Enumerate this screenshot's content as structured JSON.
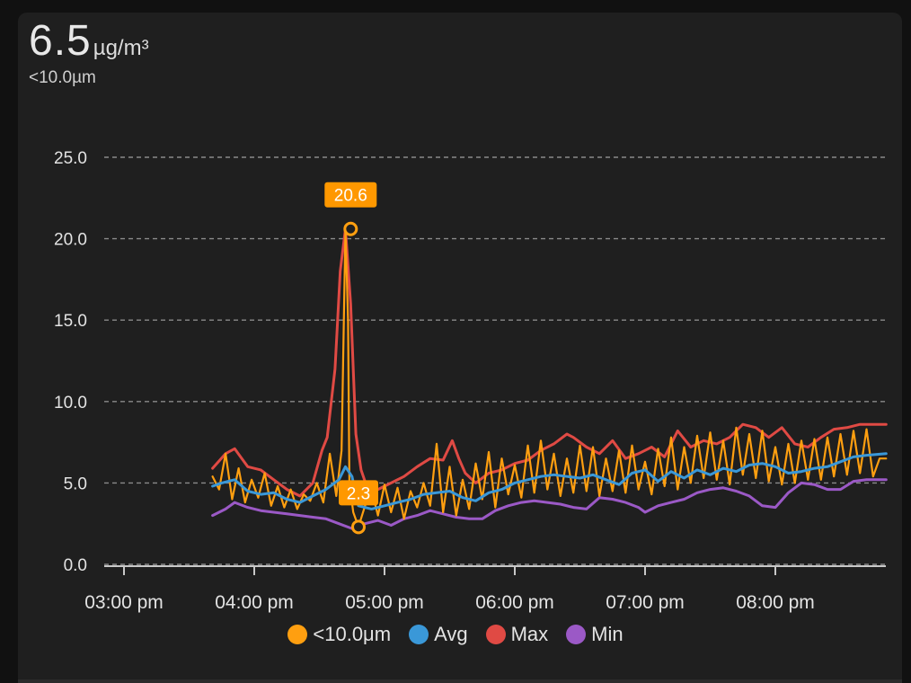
{
  "header": {
    "value": "6.5",
    "unit": "µg/m³",
    "subtitle": "<10.0µm"
  },
  "colors": {
    "background": "#1f1f1f",
    "grid": "#8a8a8a",
    "text": "#e3e3e3",
    "pm10": "#ff9f10",
    "avg": "#3a98d8",
    "max": "#e04a44",
    "min": "#9b59c6",
    "tooltip_bg": "#ff9800"
  },
  "chart_data": {
    "type": "line",
    "title": "",
    "xlabel": "",
    "ylabel": "",
    "ylim": [
      0,
      25
    ],
    "xlim": [
      15.0,
      20.85
    ],
    "y_ticks": [
      "0.0",
      "5.0",
      "10.0",
      "15.0",
      "20.0",
      "25.0"
    ],
    "x_ticks": [
      {
        "label": "03:00 pm",
        "value": 15
      },
      {
        "label": "04:00 pm",
        "value": 16
      },
      {
        "label": "05:00 pm",
        "value": 17
      },
      {
        "label": "06:00 pm",
        "value": 18
      },
      {
        "label": "07:00 pm",
        "value": 19
      },
      {
        "label": "08:00 pm",
        "value": 20
      }
    ],
    "grid": true,
    "legend_position": "bottom",
    "series": [
      {
        "name": "<10.0μm",
        "color_key": "pm10",
        "x": [
          15.68,
          15.73,
          15.78,
          15.83,
          15.88,
          15.93,
          15.98,
          16.03,
          16.08,
          16.13,
          16.18,
          16.23,
          16.28,
          16.33,
          16.38,
          16.43,
          16.48,
          16.53,
          16.58,
          16.63,
          16.67,
          16.7,
          16.72,
          16.73,
          16.76,
          16.8,
          16.85,
          16.9,
          16.95,
          17.0,
          17.05,
          17.1,
          17.15,
          17.2,
          17.25,
          17.3,
          17.35,
          17.4,
          17.45,
          17.5,
          17.55,
          17.6,
          17.65,
          17.7,
          17.75,
          17.8,
          17.85,
          17.9,
          17.95,
          18.0,
          18.05,
          18.1,
          18.15,
          18.2,
          18.25,
          18.3,
          18.35,
          18.4,
          18.45,
          18.5,
          18.55,
          18.6,
          18.65,
          18.7,
          18.75,
          18.8,
          18.85,
          18.9,
          18.95,
          19.0,
          19.05,
          19.1,
          19.15,
          19.2,
          19.25,
          19.3,
          19.35,
          19.4,
          19.45,
          19.5,
          19.55,
          19.6,
          19.65,
          19.7,
          19.75,
          19.8,
          19.85,
          19.9,
          19.95,
          20.0,
          20.05,
          20.1,
          20.15,
          20.2,
          20.25,
          20.3,
          20.35,
          20.4,
          20.45,
          20.5,
          20.55,
          20.6,
          20.65,
          20.7,
          20.75,
          20.8,
          20.85
        ],
        "values": [
          5.4,
          4.6,
          6.8,
          4.0,
          5.9,
          3.8,
          5.2,
          4.1,
          5.6,
          3.6,
          4.8,
          3.5,
          4.6,
          3.4,
          4.3,
          3.9,
          5.0,
          3.8,
          6.8,
          4.2,
          7.0,
          20.6,
          15.0,
          5.0,
          3.2,
          2.3,
          3.6,
          4.6,
          3.0,
          4.9,
          3.2,
          4.7,
          2.8,
          4.5,
          3.5,
          5.0,
          3.6,
          7.4,
          3.2,
          6.0,
          3.0,
          5.2,
          3.4,
          6.2,
          4.0,
          6.9,
          3.5,
          6.5,
          4.3,
          6.1,
          4.1,
          7.3,
          4.4,
          7.6,
          4.6,
          6.8,
          4.2,
          6.5,
          4.4,
          7.3,
          4.5,
          7.2,
          4.2,
          6.5,
          4.5,
          7.0,
          4.4,
          7.3,
          4.6,
          6.3,
          4.3,
          7.1,
          4.8,
          7.8,
          4.6,
          7.2,
          5.0,
          7.9,
          5.3,
          8.1,
          5.2,
          7.6,
          4.9,
          8.4,
          5.5,
          8.0,
          5.3,
          8.2,
          5.1,
          7.2,
          4.9,
          7.4,
          5.0,
          7.6,
          5.2,
          7.7,
          5.2,
          7.8,
          5.4,
          8.0,
          5.5,
          8.2,
          5.6,
          8.3,
          5.4,
          6.5,
          6.5
        ]
      },
      {
        "name": "Avg",
        "color_key": "avg",
        "x": [
          15.68,
          15.75,
          15.85,
          15.95,
          16.05,
          16.15,
          16.25,
          16.35,
          16.45,
          16.55,
          16.65,
          16.7,
          16.75,
          16.8,
          16.9,
          17.0,
          17.1,
          17.2,
          17.3,
          17.4,
          17.5,
          17.6,
          17.7,
          17.8,
          17.9,
          18.0,
          18.1,
          18.2,
          18.3,
          18.4,
          18.5,
          18.6,
          18.7,
          18.8,
          18.9,
          19.0,
          19.1,
          19.2,
          19.3,
          19.4,
          19.5,
          19.6,
          19.7,
          19.8,
          19.9,
          20.0,
          20.1,
          20.2,
          20.3,
          20.4,
          20.5,
          20.6,
          20.7,
          20.85
        ],
        "values": [
          4.8,
          5.0,
          5.2,
          4.5,
          4.3,
          4.4,
          4.0,
          3.8,
          4.2,
          4.6,
          5.2,
          6.0,
          5.4,
          3.6,
          3.4,
          3.6,
          3.8,
          4.0,
          4.3,
          4.4,
          4.5,
          4.1,
          3.9,
          4.4,
          4.6,
          5.0,
          5.2,
          5.4,
          5.5,
          5.4,
          5.3,
          5.5,
          5.2,
          4.9,
          5.6,
          5.8,
          5.1,
          5.7,
          5.3,
          5.8,
          5.5,
          5.9,
          5.7,
          6.1,
          6.2,
          6.0,
          5.6,
          5.7,
          5.9,
          6.0,
          6.3,
          6.6,
          6.7,
          6.8
        ]
      },
      {
        "name": "Max",
        "color_key": "max",
        "x": [
          15.68,
          15.78,
          15.85,
          15.95,
          16.05,
          16.15,
          16.25,
          16.35,
          16.45,
          16.52,
          16.56,
          16.62,
          16.66,
          16.7,
          16.74,
          16.78,
          16.82,
          16.88,
          16.95,
          17.05,
          17.15,
          17.25,
          17.35,
          17.45,
          17.52,
          17.57,
          17.62,
          17.7,
          17.8,
          17.9,
          18.0,
          18.1,
          18.2,
          18.3,
          18.4,
          18.45,
          18.55,
          18.65,
          18.75,
          18.85,
          18.95,
          19.05,
          19.15,
          19.25,
          19.35,
          19.45,
          19.55,
          19.65,
          19.75,
          19.85,
          19.95,
          20.05,
          20.15,
          20.25,
          20.35,
          20.45,
          20.55,
          20.65,
          20.75,
          20.85
        ],
        "values": [
          5.9,
          6.8,
          7.1,
          6.0,
          5.8,
          5.2,
          4.6,
          4.2,
          5.0,
          7.0,
          7.8,
          12.0,
          18.0,
          20.6,
          16.0,
          8.0,
          5.8,
          4.4,
          4.6,
          5.0,
          5.4,
          6.0,
          6.5,
          6.4,
          7.6,
          6.5,
          5.6,
          5.0,
          5.6,
          5.8,
          6.2,
          6.4,
          7.0,
          7.4,
          8.0,
          7.8,
          7.2,
          6.8,
          7.6,
          6.5,
          6.8,
          7.2,
          6.6,
          8.2,
          7.2,
          7.6,
          7.4,
          7.8,
          8.6,
          8.4,
          7.8,
          8.4,
          7.4,
          7.2,
          7.8,
          8.3,
          8.4,
          8.6,
          8.6,
          8.6
        ]
      },
      {
        "name": "Min",
        "color_key": "min",
        "x": [
          15.68,
          15.78,
          15.85,
          15.95,
          16.05,
          16.15,
          16.25,
          16.35,
          16.45,
          16.55,
          16.65,
          16.75,
          16.85,
          16.95,
          17.05,
          17.15,
          17.25,
          17.35,
          17.45,
          17.55,
          17.65,
          17.75,
          17.85,
          17.95,
          18.05,
          18.15,
          18.25,
          18.35,
          18.45,
          18.55,
          18.65,
          18.75,
          18.85,
          18.95,
          19.0,
          19.1,
          19.2,
          19.3,
          19.4,
          19.5,
          19.6,
          19.7,
          19.8,
          19.9,
          20.0,
          20.1,
          20.2,
          20.3,
          20.4,
          20.5,
          20.6,
          20.7,
          20.85
        ],
        "values": [
          3.0,
          3.4,
          3.8,
          3.5,
          3.3,
          3.2,
          3.1,
          3.0,
          2.9,
          2.8,
          2.5,
          2.2,
          2.5,
          2.7,
          2.4,
          2.8,
          3.0,
          3.3,
          3.1,
          2.9,
          2.8,
          2.8,
          3.3,
          3.6,
          3.8,
          3.9,
          3.8,
          3.7,
          3.5,
          3.4,
          4.1,
          4.0,
          3.8,
          3.5,
          3.2,
          3.6,
          3.8,
          4.0,
          4.4,
          4.6,
          4.7,
          4.5,
          4.2,
          3.6,
          3.5,
          4.4,
          5.0,
          4.9,
          4.6,
          4.6,
          5.1,
          5.2,
          5.2
        ]
      }
    ],
    "annotations": [
      {
        "label": "20.6",
        "x": 16.74,
        "y": 20.6,
        "placement": "above"
      },
      {
        "label": "2.3",
        "x": 16.8,
        "y": 2.3,
        "placement": "above"
      }
    ]
  }
}
